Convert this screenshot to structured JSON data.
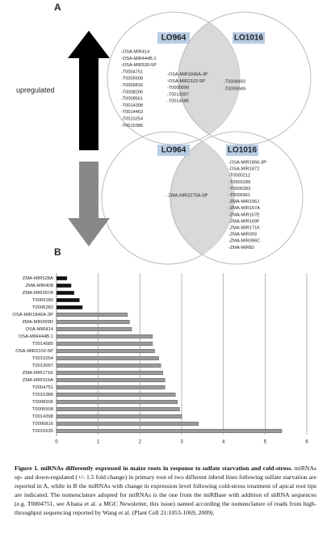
{
  "panel_a": {
    "label": "A",
    "upregulated": {
      "label": "upregulated",
      "left_title": "LO964",
      "right_title": "LO1016",
      "left_only": [
        "-OSA-MIR414",
        "-OSA-MIR444B.1",
        "-OSA-MIR530-5P",
        "-T0004751",
        "-T0005508",
        "-T0006816",
        "-T0008206",
        "-T0008561",
        "-T0014398",
        "-T0014463",
        "-T0015254",
        "-T0015386"
      ],
      "both": [
        "-OSA-MIR1846A-3P",
        "-OSA-MIR2102-5P",
        "-T0000090",
        "-T0013007",
        "-T0014585"
      ],
      "right_only": [
        "-T0008493",
        "-T0009949"
      ]
    },
    "downregulated": {
      "left_title": "LO964",
      "right_title": "LO1016",
      "both": [
        "- ZMA-MIR2275A-5P"
      ],
      "right_only": [
        "-OSA-MIR1866-3P",
        "-OSA-MIR1872",
        "-T0000212",
        "-T0003189",
        "-T0006283",
        "-T0006961",
        "-ZMA-MIR156J",
        "-ZMA-MIR167A",
        "-ZMA-MIR167E",
        "-ZMA-MIR169F",
        "-ZMA-MIR171K",
        "-ZMA-MIR393",
        "-ZMA-MIR396C",
        "-ZMA-MIR82"
      ]
    }
  },
  "panel_b": {
    "label": "B"
  },
  "chart_data": {
    "type": "bar",
    "orientation": "horizontal",
    "categories": [
      "ZMA-MIR528A",
      "ZMA-MIR408",
      "ZMA-MIR397A",
      "T0003189",
      "T0006283",
      "OSA-MIR1846A-3P",
      "ZMA-MIR399D",
      "OSA-MIR414",
      "OSA-MIR444B.1",
      "T0014585",
      "OSA-MIR2102-5P",
      "T0015254",
      "T0013007",
      "ZMA-MIR171K",
      "ZMA-MIR319A",
      "T0004751",
      "T0015386",
      "T0008206",
      "T0005508",
      "T0014398",
      "T0006816",
      "T0015535"
    ],
    "values": [
      0.25,
      0.35,
      0.42,
      0.55,
      0.62,
      1.7,
      1.75,
      1.8,
      2.3,
      2.3,
      2.35,
      2.45,
      2.5,
      2.55,
      2.6,
      2.6,
      2.85,
      2.9,
      2.95,
      3.0,
      3.4,
      5.4
    ],
    "colors": [
      "#111111",
      "#111111",
      "#111111",
      "#111111",
      "#111111",
      "#9a9a9a",
      "#9a9a9a",
      "#9a9a9a",
      "#9a9a9a",
      "#9a9a9a",
      "#9a9a9a",
      "#9a9a9a",
      "#9a9a9a",
      "#9a9a9a",
      "#9a9a9a",
      "#9a9a9a",
      "#9a9a9a",
      "#9a9a9a",
      "#9a9a9a",
      "#9a9a9a",
      "#9a9a9a",
      "#9a9a9a"
    ],
    "xlim": [
      0,
      6
    ],
    "xticks": [
      0,
      1,
      2,
      3,
      4,
      5,
      6
    ],
    "grid": true
  },
  "caption": {
    "bold": "Figure 1. miRNAs differently expressed in maize roots in response to sulfate starvation and cold-stress.",
    "text": "miRNAs up- and down-regulated (+/- 1.5 fold change) in primary root of two different inbred lines following sulfate starvation are reported in A, while in B the miRNAs with change in expression level following cold-stress treatment of apical root tips are indicated. The nomenclature adopted for miRNAs is the one from the miRBase with addition of shRNA sequences (e.g. T0004751, see Altana et al. a MGC Newsletter, this issue) named according the nomenclature of reads from high-throughput sequencing reported by Wang et al. (Plant Cell 21:1053-1069, 2009)."
  }
}
